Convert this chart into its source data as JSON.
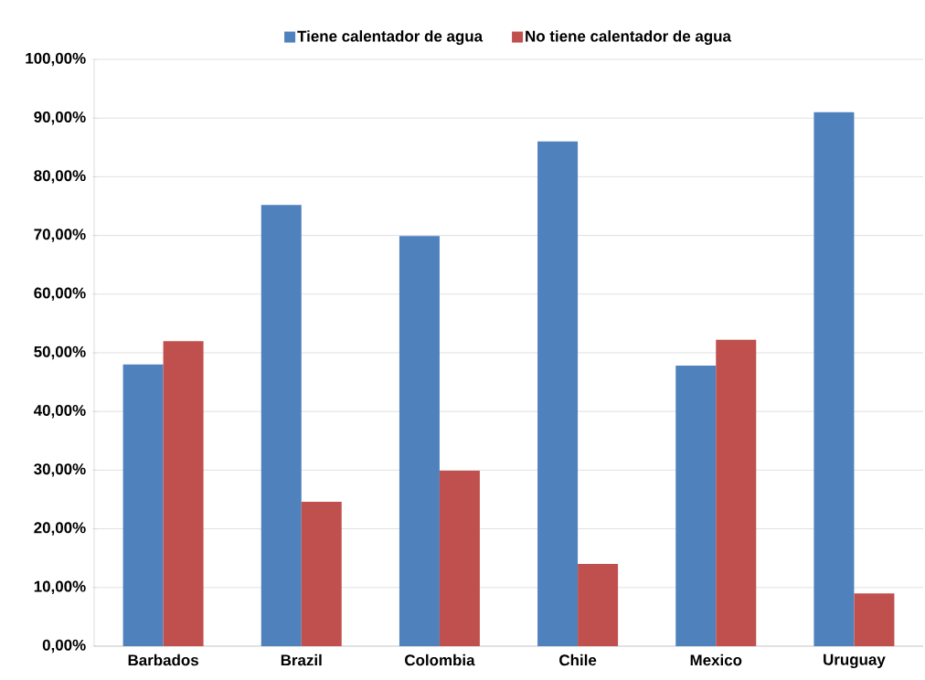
{
  "chart_data": {
    "type": "bar",
    "categories": [
      "Barbados",
      "Brazil",
      "Colombia",
      "Chile",
      "Mexico",
      "Uruguay"
    ],
    "series": [
      {
        "name": "Tiene calentador de agua",
        "color": "#4f81bd",
        "values": [
          48.0,
          75.2,
          69.9,
          86.0,
          47.8,
          91.0
        ]
      },
      {
        "name": "No tiene calentador de agua",
        "color": "#c0504d",
        "values": [
          52.0,
          24.6,
          29.9,
          14.0,
          52.2,
          9.0
        ]
      }
    ],
    "ylim": [
      0,
      100
    ],
    "yticks": [
      {
        "value": 0,
        "label": "0,00%"
      },
      {
        "value": 10,
        "label": "10,00%"
      },
      {
        "value": 20,
        "label": "20,00%"
      },
      {
        "value": 30,
        "label": "30,00%"
      },
      {
        "value": 40,
        "label": "40,00%"
      },
      {
        "value": 50,
        "label": "50,00%"
      },
      {
        "value": 60,
        "label": "60,00%"
      },
      {
        "value": 70,
        "label": "70,00%"
      },
      {
        "value": 80,
        "label": "80,00%"
      },
      {
        "value": 90,
        "label": "90,00%"
      },
      {
        "value": 100,
        "label": "100,00%"
      }
    ],
    "grid": "y",
    "legend": "top"
  }
}
